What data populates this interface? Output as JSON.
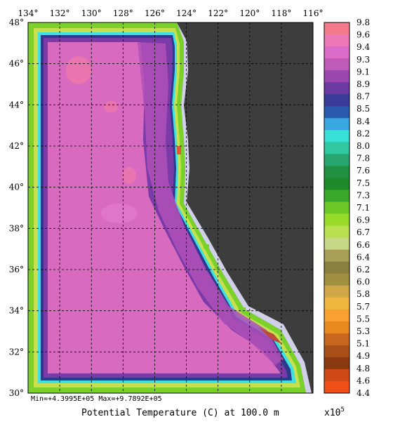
{
  "map": {
    "top_lon_labels": [
      "134°",
      "132°",
      "130°",
      "128°",
      "126°",
      "124°",
      "122°",
      "120°",
      "118°",
      "116°"
    ],
    "left_lat_labels": [
      "48°",
      "46°",
      "44°",
      "42°",
      "40°",
      "38°",
      "36°",
      "34°",
      "32°",
      "30°"
    ],
    "stats": "Min=+4.3995E+05   Max=+9.7892E+05",
    "caption": "Potential Temperature (C) at 100.0 m",
    "scale_note": "x10",
    "scale_exp": "5",
    "colors": {
      "land": "#3d3d3d",
      "coast_ice": "#d0d0e8",
      "interior": "#d86ac0",
      "deep_band": "#7a3aa8",
      "edge_navy": "#2a3a8c",
      "edge_cyan": "#40e0e0",
      "edge_green": "#7ad12a",
      "warm_patch": "#f07aa8"
    }
  },
  "colorbar": {
    "labels": [
      "9.8",
      "9.6",
      "9.4",
      "9.3",
      "9.1",
      "8.9",
      "8.7",
      "8.5",
      "8.4",
      "8.2",
      "8.0",
      "7.8",
      "7.6",
      "7.5",
      "7.3",
      "7.1",
      "6.9",
      "6.7",
      "6.6",
      "6.4",
      "6.2",
      "6.0",
      "5.8",
      "5.7",
      "5.5",
      "5.3",
      "5.1",
      "4.9",
      "4.8",
      "4.6",
      "4.4"
    ],
    "colors": [
      "#f27a8c",
      "#ec78b8",
      "#dc6cc8",
      "#c05ab8",
      "#9a48b0",
      "#6a3aa0",
      "#3a3a98",
      "#2a5ab0",
      "#3aa8e0",
      "#38e0d8",
      "#30c8a0",
      "#28a870",
      "#209040",
      "#1e8a2a",
      "#3aa82a",
      "#6ec828",
      "#98dc28",
      "#b8e050",
      "#c8d888",
      "#a8a058",
      "#8a8040",
      "#a09040",
      "#d0a848",
      "#f0b840",
      "#f8a030",
      "#e88a20",
      "#c86820",
      "#a85018",
      "#8a3a10",
      "#d04a18",
      "#f05018"
    ]
  }
}
